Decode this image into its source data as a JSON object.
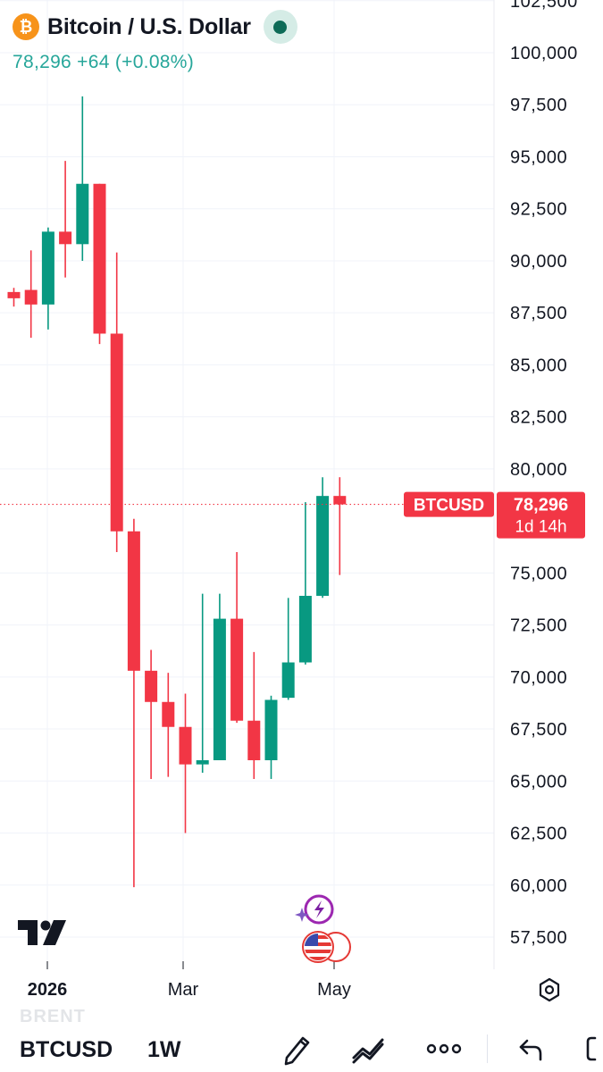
{
  "header": {
    "coin_glyph": "₿",
    "title": "Bitcoin / U.S. Dollar",
    "last": "78,296",
    "change": "+64",
    "change_pct": "(+0.08%)"
  },
  "colors": {
    "up": "#26a69a",
    "up_candle": "#089981",
    "down": "#f23645",
    "grid": "#f0f3fa",
    "axis_text": "#131722",
    "btc": "#f7931a"
  },
  "chart_data": {
    "type": "candlestick",
    "interval": "1W",
    "y_ticks": [
      "102,500",
      "100,000",
      "97,500",
      "95,000",
      "92,500",
      "90,000",
      "87,500",
      "85,000",
      "82,500",
      "80,000",
      "75,000",
      "72,500",
      "70,000",
      "67,500",
      "65,000",
      "62,500",
      "60,000",
      "57,500"
    ],
    "ylim": [
      55500,
      103000
    ],
    "x_labels": [
      "2026",
      "Mar",
      "May"
    ],
    "candles": [
      {
        "o": 88500,
        "h": 88700,
        "l": 87800,
        "c": 88200
      },
      {
        "o": 88600,
        "h": 90500,
        "l": 86300,
        "c": 87900
      },
      {
        "o": 87900,
        "h": 91600,
        "l": 86700,
        "c": 91400
      },
      {
        "o": 91400,
        "h": 94800,
        "l": 89200,
        "c": 90800
      },
      {
        "o": 90800,
        "h": 97900,
        "l": 90000,
        "c": 93700
      },
      {
        "o": 93700,
        "h": 93700,
        "l": 86000,
        "c": 86500
      },
      {
        "o": 86500,
        "h": 90400,
        "l": 76000,
        "c": 77000
      },
      {
        "o": 77000,
        "h": 77600,
        "l": 59900,
        "c": 70300
      },
      {
        "o": 70300,
        "h": 71300,
        "l": 65100,
        "c": 68800
      },
      {
        "o": 68800,
        "h": 70200,
        "l": 65200,
        "c": 67600
      },
      {
        "o": 67600,
        "h": 69200,
        "l": 62500,
        "c": 65800
      },
      {
        "o": 65800,
        "h": 74000,
        "l": 65400,
        "c": 66000
      },
      {
        "o": 66000,
        "h": 74000,
        "l": 66000,
        "c": 72800
      },
      {
        "o": 72800,
        "h": 76000,
        "l": 67800,
        "c": 67900
      },
      {
        "o": 67900,
        "h": 71200,
        "l": 65100,
        "c": 66000
      },
      {
        "o": 66000,
        "h": 69100,
        "l": 65100,
        "c": 68900
      },
      {
        "o": 69000,
        "h": 73800,
        "l": 68900,
        "c": 70700
      },
      {
        "o": 70700,
        "h": 78400,
        "l": 70600,
        "c": 73900
      },
      {
        "o": 73900,
        "h": 79600,
        "l": 73800,
        "c": 78700
      },
      {
        "o": 78700,
        "h": 79600,
        "l": 74900,
        "c": 78296
      }
    ],
    "last_price": 78296,
    "price_tag": {
      "symbol": "BTCUSD",
      "price": "78,296",
      "countdown": "1d 14h"
    }
  },
  "bottom": {
    "watermark": "BRENT",
    "symbol": "BTCUSD",
    "interval": "1W"
  }
}
